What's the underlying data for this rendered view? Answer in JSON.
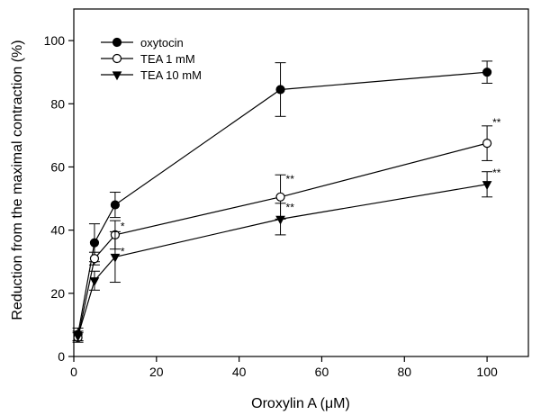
{
  "chart_data": {
    "type": "line",
    "xlabel": "Oroxylin A (μM)",
    "ylabel": "Reduction from the maximal contraction (%)",
    "xlim": [
      0,
      110
    ],
    "ylim": [
      0,
      110
    ],
    "xticks": [
      0,
      20,
      40,
      60,
      80,
      100
    ],
    "yticks": [
      0,
      20,
      40,
      60,
      80,
      100
    ],
    "xtick_labels": [
      "0",
      "20",
      "40",
      "60",
      "80",
      "100"
    ],
    "ytick_labels": [
      "0",
      "20",
      "40",
      "60",
      "80",
      "100"
    ],
    "grid": false,
    "legend_position": "top-left",
    "series": [
      {
        "name": "oxytocin",
        "marker": "filled-circle",
        "color": "#000000",
        "x": [
          1,
          5,
          10,
          50,
          100
        ],
        "y": [
          7,
          36,
          48,
          84.5,
          90
        ],
        "err": [
          2,
          6,
          4,
          8.5,
          3.5
        ]
      },
      {
        "name": "TEA 1 mM",
        "marker": "open-circle",
        "color": "#000000",
        "x": [
          1,
          5,
          10,
          50,
          100
        ],
        "y": [
          6,
          31,
          38.5,
          50.5,
          67.5
        ],
        "err": [
          1.5,
          2,
          4.5,
          7,
          5.5
        ]
      },
      {
        "name": "TEA 10 mM",
        "marker": "filled-triangle-down",
        "color": "#000000",
        "x": [
          1,
          5,
          10,
          50,
          100
        ],
        "y": [
          6.5,
          24,
          31.5,
          43.5,
          54.5
        ],
        "err": [
          1.5,
          3,
          8,
          5,
          4
        ]
      }
    ],
    "annotations": [
      {
        "text": "*",
        "x": 10,
        "y": 40
      },
      {
        "text": "*",
        "x": 10,
        "y": 32
      },
      {
        "text": "**",
        "x": 50,
        "y": 55
      },
      {
        "text": "**",
        "x": 50,
        "y": 46
      },
      {
        "text": "**",
        "x": 100,
        "y": 73
      },
      {
        "text": "**",
        "x": 100,
        "y": 57
      }
    ]
  }
}
